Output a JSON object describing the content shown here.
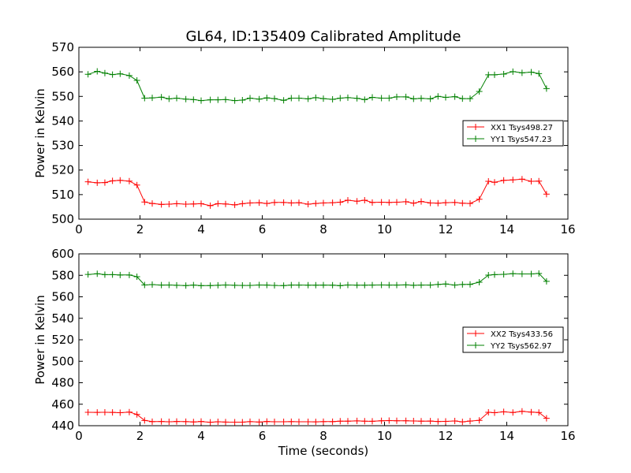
{
  "figure": {
    "title": "GL64, ID:135409 Calibrated Amplitude"
  },
  "chart_data": [
    {
      "type": "line",
      "title": "GL64, ID:135409 Calibrated Amplitude",
      "xlabel": "",
      "ylabel": "Power in Kelvin",
      "xlim": [
        0,
        16
      ],
      "ylim": [
        500,
        570
      ],
      "xticks": [
        "0",
        "2",
        "4",
        "6",
        "8",
        "10",
        "12",
        "14",
        "16"
      ],
      "yticks": [
        "500",
        "510",
        "520",
        "530",
        "540",
        "550",
        "560",
        "570"
      ],
      "legend_position": "right",
      "x": [
        0.3,
        0.6,
        0.85,
        1.1,
        1.35,
        1.65,
        1.9,
        2.15,
        2.4,
        2.7,
        2.95,
        3.2,
        3.5,
        3.75,
        4.0,
        4.3,
        4.55,
        4.8,
        5.1,
        5.35,
        5.6,
        5.9,
        6.15,
        6.4,
        6.7,
        6.95,
        7.2,
        7.5,
        7.75,
        8.0,
        8.3,
        8.55,
        8.8,
        9.1,
        9.35,
        9.6,
        9.9,
        10.15,
        10.4,
        10.7,
        10.95,
        11.2,
        11.5,
        11.75,
        12.0,
        12.3,
        12.55,
        12.8,
        13.1,
        13.4,
        13.6,
        13.9,
        14.2,
        14.5,
        14.8,
        15.05,
        15.3
      ],
      "series": [
        {
          "name": "XX1 Tsys498.27",
          "color": "#ff0000",
          "values": [
            515.2,
            514.8,
            514.9,
            515.6,
            515.8,
            515.5,
            513.9,
            507.0,
            506.4,
            506.0,
            506.1,
            506.3,
            506.1,
            506.2,
            506.3,
            505.5,
            506.3,
            506.2,
            505.8,
            506.3,
            506.6,
            506.7,
            506.4,
            506.8,
            506.8,
            506.6,
            506.7,
            506.1,
            506.4,
            506.6,
            506.7,
            506.9,
            507.7,
            507.3,
            507.7,
            506.8,
            506.9,
            506.8,
            506.9,
            507.1,
            506.5,
            507.2,
            506.6,
            506.5,
            506.7,
            506.8,
            506.5,
            506.4,
            508.1,
            515.4,
            515.0,
            515.8,
            516.0,
            516.3,
            515.4,
            515.5,
            510.2
          ]
        },
        {
          "name": "YY1 Tsys547.23",
          "color": "#008000",
          "values": [
            559.0,
            560.2,
            559.5,
            558.9,
            559.2,
            558.5,
            556.5,
            549.3,
            549.4,
            549.7,
            549.0,
            549.3,
            548.9,
            548.7,
            548.3,
            548.6,
            548.6,
            548.7,
            548.3,
            548.5,
            549.3,
            548.9,
            549.4,
            549.1,
            548.4,
            549.3,
            549.3,
            549.0,
            549.5,
            549.1,
            548.8,
            549.3,
            549.5,
            549.2,
            548.7,
            549.6,
            549.3,
            549.3,
            549.8,
            549.8,
            549.0,
            549.2,
            549.0,
            550.0,
            549.6,
            549.9,
            549.1,
            549.1,
            552.0,
            558.8,
            558.8,
            559.1,
            560.1,
            559.6,
            559.9,
            559.3,
            553.2
          ]
        }
      ]
    },
    {
      "type": "line",
      "title": "",
      "xlabel": "Time (seconds)",
      "ylabel": "Power in Kelvin",
      "xlim": [
        0,
        16
      ],
      "ylim": [
        440,
        600
      ],
      "xticks": [
        "0",
        "2",
        "4",
        "6",
        "8",
        "10",
        "12",
        "14",
        "16"
      ],
      "yticks": [
        "440",
        "460",
        "480",
        "500",
        "520",
        "540",
        "560",
        "580",
        "600"
      ],
      "legend_position": "right",
      "x": [
        0.3,
        0.6,
        0.85,
        1.1,
        1.35,
        1.65,
        1.9,
        2.15,
        2.4,
        2.7,
        2.95,
        3.2,
        3.5,
        3.75,
        4.0,
        4.3,
        4.55,
        4.8,
        5.1,
        5.35,
        5.6,
        5.9,
        6.15,
        6.4,
        6.7,
        6.95,
        7.2,
        7.5,
        7.75,
        8.0,
        8.3,
        8.55,
        8.8,
        9.1,
        9.35,
        9.6,
        9.9,
        10.15,
        10.4,
        10.7,
        10.95,
        11.2,
        11.5,
        11.75,
        12.0,
        12.3,
        12.55,
        12.8,
        13.1,
        13.4,
        13.6,
        13.9,
        14.2,
        14.5,
        14.8,
        15.05,
        15.3
      ],
      "series": [
        {
          "name": "XX2 Tsys433.56",
          "color": "#ff0000",
          "values": [
            452.5,
            452.4,
            452.5,
            452.4,
            452.1,
            452.7,
            450.5,
            444.9,
            443.8,
            443.9,
            443.7,
            443.9,
            443.8,
            443.5,
            443.9,
            443.2,
            443.7,
            443.4,
            443.3,
            443.3,
            443.8,
            443.4,
            443.9,
            443.7,
            443.7,
            443.8,
            443.7,
            443.7,
            443.6,
            443.8,
            443.8,
            444.2,
            444.2,
            444.5,
            444.2,
            444.1,
            444.6,
            444.8,
            444.6,
            444.6,
            444.4,
            444.2,
            444.3,
            443.9,
            444.0,
            444.4,
            443.6,
            444.3,
            445.0,
            452.5,
            452.1,
            452.9,
            452.3,
            453.4,
            452.7,
            452.3,
            446.9
          ]
        },
        {
          "name": "YY2 Tsys562.97",
          "color": "#008000",
          "values": [
            580.8,
            581.5,
            580.6,
            580.6,
            580.3,
            580.3,
            578.7,
            571.0,
            571.4,
            570.9,
            571.0,
            570.7,
            570.5,
            570.9,
            570.4,
            570.5,
            570.7,
            571.0,
            570.7,
            570.6,
            570.6,
            571.0,
            570.9,
            570.6,
            570.5,
            570.9,
            570.9,
            570.8,
            570.8,
            570.9,
            570.8,
            570.4,
            571.0,
            570.8,
            570.8,
            570.9,
            571.0,
            570.9,
            570.9,
            571.1,
            570.7,
            570.9,
            570.9,
            571.5,
            571.9,
            570.9,
            571.5,
            571.6,
            573.6,
            580.2,
            580.6,
            580.9,
            581.6,
            581.3,
            581.3,
            581.7,
            574.4
          ]
        }
      ]
    }
  ]
}
